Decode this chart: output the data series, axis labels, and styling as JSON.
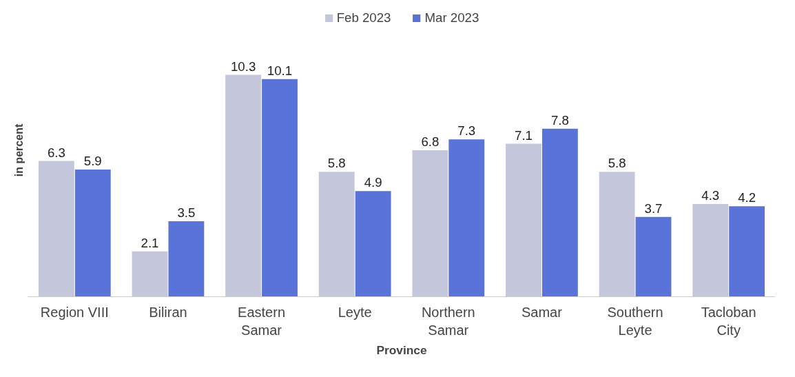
{
  "chart_data": {
    "type": "bar",
    "xlabel": "Province",
    "ylabel": "in percent",
    "categories": [
      "Region VIII",
      "Biliran",
      "Eastern Samar",
      "Leyte",
      "Northern Samar",
      "Samar",
      "Southern Leyte",
      "Tacloban City"
    ],
    "series": [
      {
        "name": "Feb 2023",
        "color": "#c4c7dc",
        "values": [
          6.3,
          2.1,
          10.3,
          5.8,
          6.8,
          7.1,
          5.8,
          4.3
        ]
      },
      {
        "name": "Mar 2023",
        "color": "#5a73d8",
        "values": [
          5.9,
          3.5,
          10.1,
          4.9,
          7.3,
          7.8,
          3.7,
          4.2
        ]
      }
    ],
    "data_labels": true,
    "legend": "top",
    "tick_labels": "x"
  }
}
